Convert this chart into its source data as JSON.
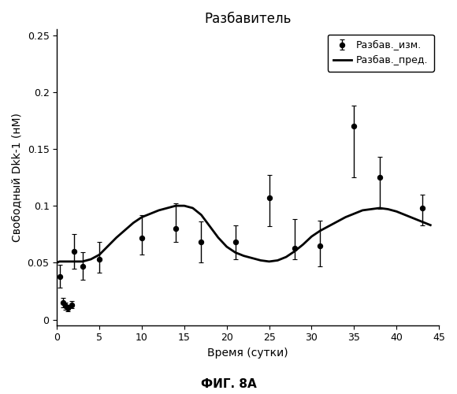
{
  "title": "Разбавитель",
  "xlabel": "Время (сутки)",
  "ylabel": "Свободный Dkk-1 (нМ)",
  "caption": "ФИГ. 8А",
  "xlim": [
    0,
    45
  ],
  "ylim": [
    -0.005,
    0.255
  ],
  "xticks": [
    0,
    5,
    10,
    15,
    20,
    25,
    30,
    35,
    40,
    45
  ],
  "yticks": [
    0,
    0.05,
    0.1,
    0.15,
    0.2,
    0.25
  ],
  "ytick_labels": [
    "0",
    "0.05",
    "0.1",
    "0.15",
    "0.2",
    "0.25"
  ],
  "scatter_x": [
    0.3,
    0.7,
    1.0,
    1.3,
    1.7,
    2.0,
    3.0,
    5.0,
    10.0,
    14.0,
    17.0,
    21.0,
    25.0,
    28.0,
    31.0,
    35.0,
    38.0,
    43.0
  ],
  "scatter_y": [
    0.038,
    0.015,
    0.012,
    0.01,
    0.013,
    0.06,
    0.047,
    0.053,
    0.072,
    0.08,
    0.068,
    0.068,
    0.107,
    0.063,
    0.065,
    0.17,
    0.125,
    0.098
  ],
  "scatter_yerr_lo": [
    0.01,
    0.004,
    0.003,
    0.003,
    0.003,
    0.015,
    0.012,
    0.012,
    0.015,
    0.012,
    0.018,
    0.015,
    0.025,
    0.01,
    0.018,
    0.045,
    0.028,
    0.015
  ],
  "scatter_yerr_hi": [
    0.01,
    0.004,
    0.003,
    0.003,
    0.003,
    0.015,
    0.012,
    0.015,
    0.02,
    0.022,
    0.018,
    0.015,
    0.02,
    0.025,
    0.022,
    0.018,
    0.018,
    0.012
  ],
  "line_x": [
    0.0,
    0.3,
    0.7,
    1.0,
    1.5,
    2.0,
    2.5,
    3.0,
    4.0,
    5.0,
    7.0,
    9.0,
    10.0,
    12.0,
    14.0,
    15.0,
    16.0,
    17.0,
    18.0,
    19.0,
    20.0,
    21.0,
    22.0,
    23.0,
    24.0,
    25.0,
    26.0,
    27.0,
    28.0,
    29.0,
    30.0,
    31.0,
    32.0,
    33.0,
    34.0,
    35.0,
    36.0,
    37.0,
    38.0,
    39.0,
    40.0,
    41.0,
    42.0,
    43.0,
    44.0
  ],
  "line_y": [
    0.05,
    0.051,
    0.051,
    0.051,
    0.051,
    0.051,
    0.051,
    0.051,
    0.053,
    0.057,
    0.072,
    0.085,
    0.09,
    0.096,
    0.1,
    0.1,
    0.098,
    0.092,
    0.082,
    0.072,
    0.064,
    0.059,
    0.056,
    0.054,
    0.052,
    0.051,
    0.052,
    0.055,
    0.06,
    0.066,
    0.073,
    0.078,
    0.082,
    0.086,
    0.09,
    0.093,
    0.096,
    0.097,
    0.098,
    0.097,
    0.095,
    0.092,
    0.089,
    0.086,
    0.083
  ],
  "legend_scatter": "Разбав._изм.",
  "legend_line": "Разбав._пред.",
  "scatter_color": "#000000",
  "line_color": "#000000",
  "bg_color": "#ffffff",
  "title_fontsize": 12,
  "label_fontsize": 10,
  "tick_fontsize": 9,
  "caption_fontsize": 11,
  "legend_fontsize": 9
}
